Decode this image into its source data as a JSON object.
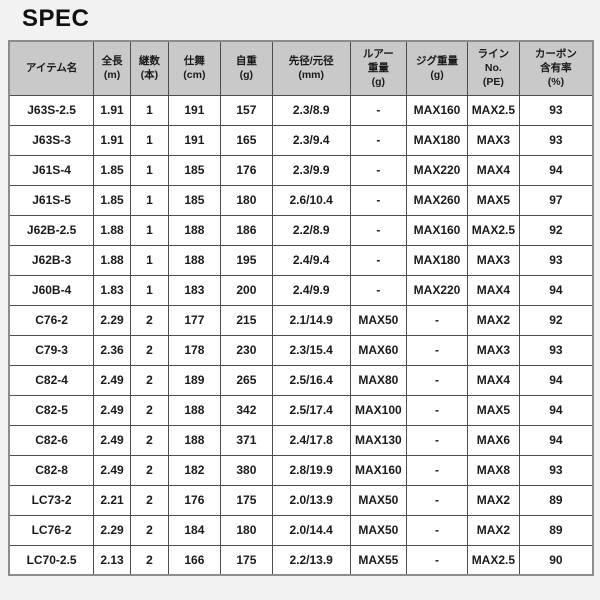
{
  "page": {
    "title": "SPEC"
  },
  "colors": {
    "page_bg": "#f2f2f2",
    "header_bg": "#c9c9c9",
    "cell_bg": "#ffffff",
    "border_inner": "#4d4d4d",
    "border_outer": "#8c8c8c",
    "text": "#1a1a1a"
  },
  "table": {
    "columns": [
      {
        "id": "item",
        "lines": [
          "アイテム名"
        ]
      },
      {
        "id": "length",
        "lines": [
          "全長",
          "(m)"
        ]
      },
      {
        "id": "pieces",
        "lines": [
          "継数",
          "(本)"
        ]
      },
      {
        "id": "closed",
        "lines": [
          "仕舞",
          "(cm)"
        ]
      },
      {
        "id": "weight",
        "lines": [
          "自重",
          "(g)"
        ]
      },
      {
        "id": "diameter",
        "lines": [
          "先径/元径",
          "(mm)"
        ]
      },
      {
        "id": "lure",
        "lines": [
          "ルアー",
          "重量",
          "(g)"
        ]
      },
      {
        "id": "jig",
        "lines": [
          "ジグ重量",
          "(g)"
        ]
      },
      {
        "id": "line",
        "lines": [
          "ライン",
          "No.",
          "(PE)"
        ]
      },
      {
        "id": "carbon",
        "lines": [
          "カーボン",
          "含有率",
          "(%)"
        ]
      }
    ],
    "rows": [
      [
        "J63S-2.5",
        "1.91",
        "1",
        "191",
        "157",
        "2.3/8.9",
        "-",
        "MAX160",
        "MAX2.5",
        "93"
      ],
      [
        "J63S-3",
        "1.91",
        "1",
        "191",
        "165",
        "2.3/9.4",
        "-",
        "MAX180",
        "MAX3",
        "93"
      ],
      [
        "J61S-4",
        "1.85",
        "1",
        "185",
        "176",
        "2.3/9.9",
        "-",
        "MAX220",
        "MAX4",
        "94"
      ],
      [
        "J61S-5",
        "1.85",
        "1",
        "185",
        "180",
        "2.6/10.4",
        "-",
        "MAX260",
        "MAX5",
        "97"
      ],
      [
        "J62B-2.5",
        "1.88",
        "1",
        "188",
        "186",
        "2.2/8.9",
        "-",
        "MAX160",
        "MAX2.5",
        "92"
      ],
      [
        "J62B-3",
        "1.88",
        "1",
        "188",
        "195",
        "2.4/9.4",
        "-",
        "MAX180",
        "MAX3",
        "93"
      ],
      [
        "J60B-4",
        "1.83",
        "1",
        "183",
        "200",
        "2.4/9.9",
        "-",
        "MAX220",
        "MAX4",
        "94"
      ],
      [
        "C76-2",
        "2.29",
        "2",
        "177",
        "215",
        "2.1/14.9",
        "MAX50",
        "-",
        "MAX2",
        "92"
      ],
      [
        "C79-3",
        "2.36",
        "2",
        "178",
        "230",
        "2.3/15.4",
        "MAX60",
        "-",
        "MAX3",
        "93"
      ],
      [
        "C82-4",
        "2.49",
        "2",
        "189",
        "265",
        "2.5/16.4",
        "MAX80",
        "-",
        "MAX4",
        "94"
      ],
      [
        "C82-5",
        "2.49",
        "2",
        "188",
        "342",
        "2.5/17.4",
        "MAX100",
        "-",
        "MAX5",
        "94"
      ],
      [
        "C82-6",
        "2.49",
        "2",
        "188",
        "371",
        "2.4/17.8",
        "MAX130",
        "-",
        "MAX6",
        "94"
      ],
      [
        "C82-8",
        "2.49",
        "2",
        "182",
        "380",
        "2.8/19.9",
        "MAX160",
        "-",
        "MAX8",
        "93"
      ],
      [
        "LC73-2",
        "2.21",
        "2",
        "176",
        "175",
        "2.0/13.9",
        "MAX50",
        "-",
        "MAX2",
        "89"
      ],
      [
        "LC76-2",
        "2.29",
        "2",
        "184",
        "180",
        "2.0/14.4",
        "MAX50",
        "-",
        "MAX2",
        "89"
      ],
      [
        "LC70-2.5",
        "2.13",
        "2",
        "166",
        "175",
        "2.2/13.9",
        "MAX55",
        "-",
        "MAX2.5",
        "90"
      ]
    ]
  }
}
